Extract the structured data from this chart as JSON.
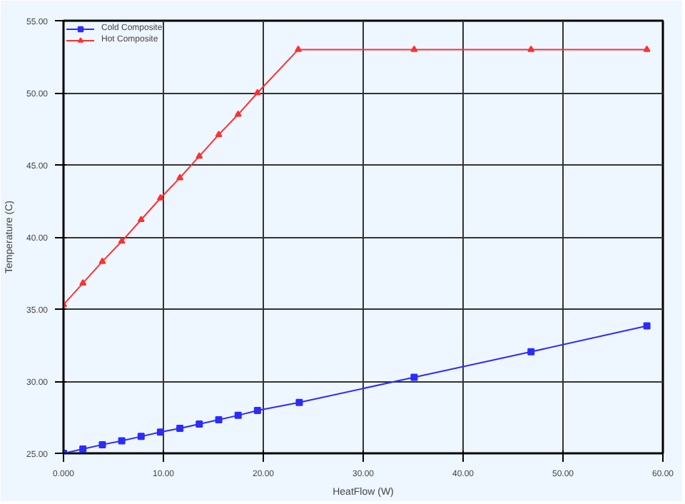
{
  "chart_data": {
    "type": "line",
    "xlabel": "HeatFlow (W)",
    "ylabel": "Temperature (C)",
    "series": [
      {
        "name": "Cold Composite",
        "color": "#2b2bff",
        "marker": "square",
        "x": [
          0,
          1.94,
          3.89,
          5.83,
          7.77,
          9.71,
          11.65,
          13.59,
          15.54,
          17.48,
          19.42,
          23.6,
          35.1,
          46.8,
          58.4
        ],
        "values": [
          25.0,
          25.3,
          25.6,
          25.87,
          26.17,
          26.47,
          26.73,
          27.03,
          27.33,
          27.63,
          27.97,
          28.53,
          30.27,
          32.04,
          33.84
        ]
      },
      {
        "name": "Hot Composite",
        "color": "#ff3030",
        "marker": "triangle",
        "x": [
          0,
          1.94,
          3.89,
          5.83,
          7.77,
          9.71,
          11.65,
          13.59,
          15.54,
          17.48,
          19.42,
          23.5,
          35.1,
          46.8,
          58.4
        ],
        "values": [
          35.3,
          36.8,
          38.3,
          39.7,
          41.2,
          42.7,
          44.1,
          45.6,
          47.1,
          48.5,
          50.0,
          53.0,
          53.0,
          53.0,
          53.0
        ]
      }
    ],
    "xlim": [
      0,
      60
    ],
    "ylim": [
      25,
      55
    ],
    "xticks": [
      {
        "value": 0,
        "label": "0.000"
      },
      {
        "value": 10,
        "label": "10.00"
      },
      {
        "value": 20,
        "label": "20.00"
      },
      {
        "value": 30,
        "label": "30.00"
      },
      {
        "value": 40,
        "label": "40.00"
      },
      {
        "value": 50,
        "label": "50.00"
      },
      {
        "value": 60,
        "label": "60.00"
      }
    ],
    "yticks": [
      {
        "value": 25,
        "label": "25.00"
      },
      {
        "value": 30,
        "label": "30.00"
      },
      {
        "value": 35,
        "label": "35.00"
      },
      {
        "value": 40,
        "label": "40.00"
      },
      {
        "value": 45,
        "label": "45.00"
      },
      {
        "value": 50,
        "label": "50.00"
      },
      {
        "value": 55,
        "label": "55.00"
      }
    ],
    "grid": true,
    "legend": "top left"
  }
}
